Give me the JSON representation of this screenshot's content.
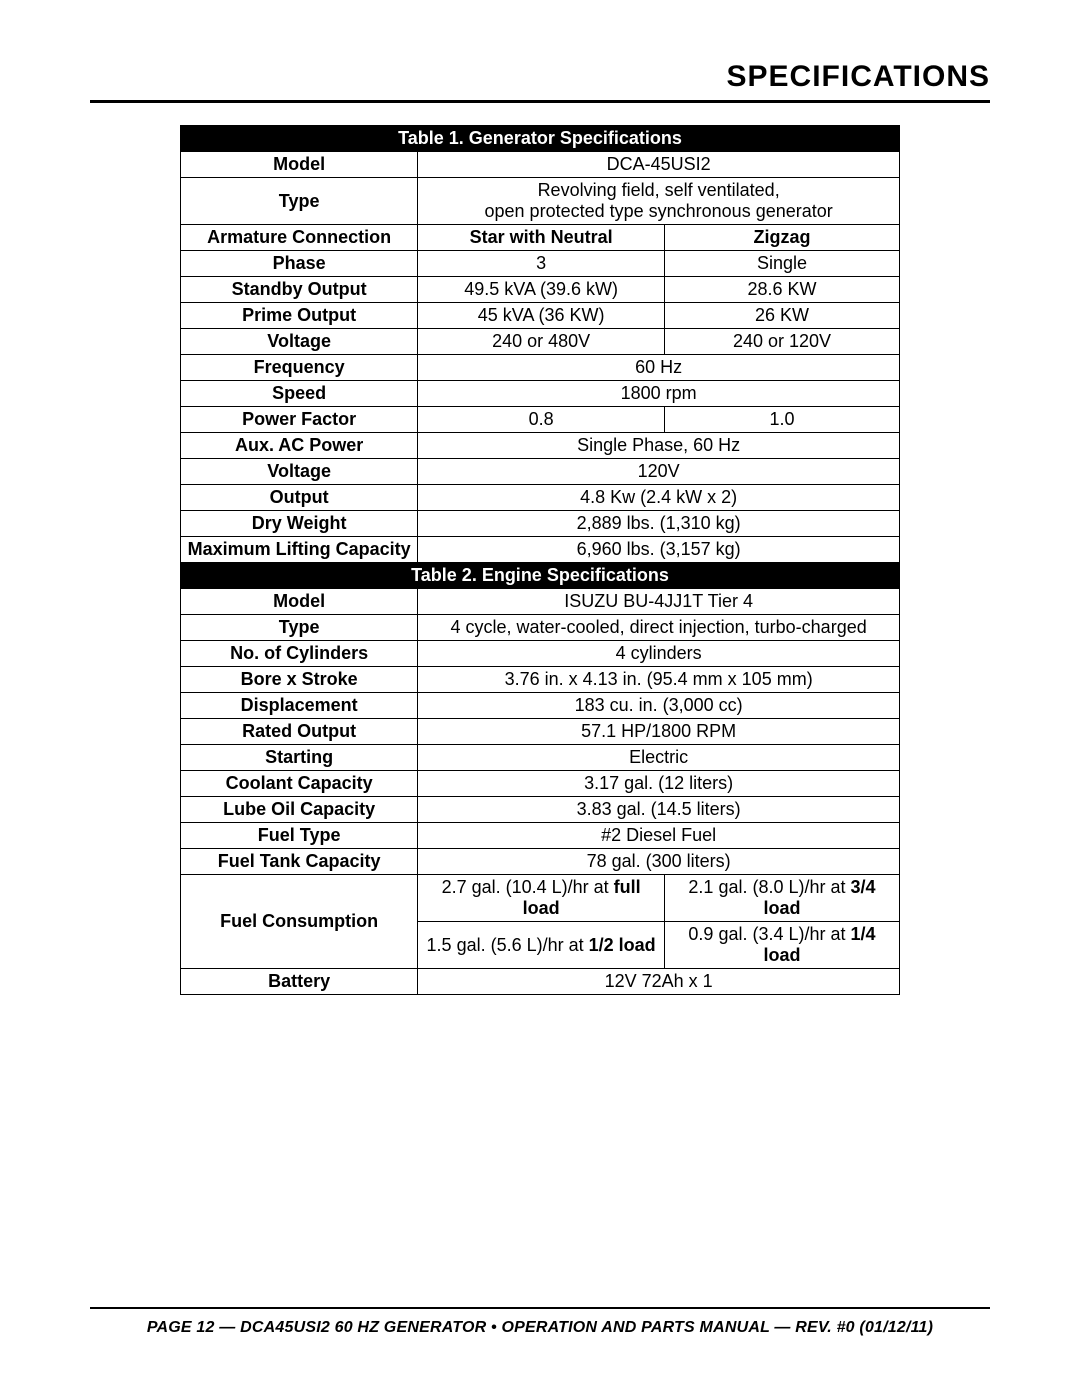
{
  "page": {
    "title": "SPECIFICATIONS",
    "footer": "PAGE 12 — DCA45USI2 60 HZ GENERATOR • OPERATION AND PARTS MANUAL — REV. #0 (01/12/11)"
  },
  "table1": {
    "header": "Table 1. Generator Specifications",
    "rows": {
      "model": {
        "label": "Model",
        "value": "DCA-45USI2"
      },
      "type": {
        "label": "Type",
        "line1": "Revolving field, self ventilated,",
        "line2": "open protected type synchronous generator"
      },
      "armature": {
        "label": "Armature Connection",
        "col1": "Star with Neutral",
        "col2": "Zigzag"
      },
      "phase": {
        "label": "Phase",
        "col1": "3",
        "col2": "Single"
      },
      "standby": {
        "label": "Standby Output",
        "col1": "49.5 kVA (39.6 kW)",
        "col2": "28.6 KW"
      },
      "prime": {
        "label": "Prime Output",
        "col1": "45 kVA (36 KW)",
        "col2": "26 KW"
      },
      "voltage": {
        "label": "Voltage",
        "col1": "240 or 480V",
        "col2": "240 or 120V"
      },
      "frequency": {
        "label": "Frequency",
        "value": "60 Hz"
      },
      "speed": {
        "label": "Speed",
        "value": "1800 rpm"
      },
      "pf": {
        "label": "Power Factor",
        "col1": "0.8",
        "col2": "1.0"
      },
      "aux": {
        "label": "Aux. AC Power",
        "value": "Single Phase, 60 Hz"
      },
      "voltage2": {
        "label": "Voltage",
        "value": "120V"
      },
      "output": {
        "label": "Output",
        "value": "4.8 Kw (2.4 kW x 2)"
      },
      "dryweight": {
        "label": "Dry Weight",
        "value": "2,889 lbs. (1,310 kg)"
      },
      "maxlift": {
        "label": "Maximum Lifting Capacity",
        "value": "6,960 lbs. (3,157 kg)"
      }
    }
  },
  "table2": {
    "header": "Table 2. Engine Specifications",
    "rows": {
      "model": {
        "label": "Model",
        "value": "ISUZU BU-4JJ1T Tier 4"
      },
      "type": {
        "label": "Type",
        "value": "4 cycle, water-cooled, direct injection, turbo-charged"
      },
      "cyl": {
        "label": "No. of Cylinders",
        "value": "4 cylinders"
      },
      "bore": {
        "label": "Bore x Stroke",
        "value": "3.76 in. x 4.13 in. (95.4 mm x 105 mm)"
      },
      "disp": {
        "label": "Displacement",
        "value": "183 cu. in. (3,000 cc)"
      },
      "rated": {
        "label": "Rated Output",
        "value": "57.1 HP/1800 RPM"
      },
      "start": {
        "label": "Starting",
        "value": "Electric"
      },
      "coolant": {
        "label": "Coolant Capacity",
        "value": "3.17 gal. (12 liters)"
      },
      "lube": {
        "label": "Lube Oil Capacity",
        "value": "3.83 gal. (14.5 liters)"
      },
      "fueltype": {
        "label": "Fuel Type",
        "value": "#2 Diesel Fuel"
      },
      "tank": {
        "label": "Fuel Tank Capacity",
        "value": "78 gal. (300 liters)"
      },
      "fuelcons": {
        "label": "Fuel Consumption",
        "r1c1a": "2.7 gal. (10.4 L)/hr at ",
        "r1c1b": "full load",
        "r1c2a": "2.1 gal. (8.0 L)/hr at ",
        "r1c2b": "3/4 load",
        "r2c1a": "1.5 gal. (5.6 L)/hr at ",
        "r2c1b": "1/2 load",
        "r2c2a": "0.9 gal. (3.4 L)/hr at ",
        "r2c2b": "1/4 load"
      },
      "battery": {
        "label": "Battery",
        "value": "12V 72Ah x 1"
      }
    }
  }
}
